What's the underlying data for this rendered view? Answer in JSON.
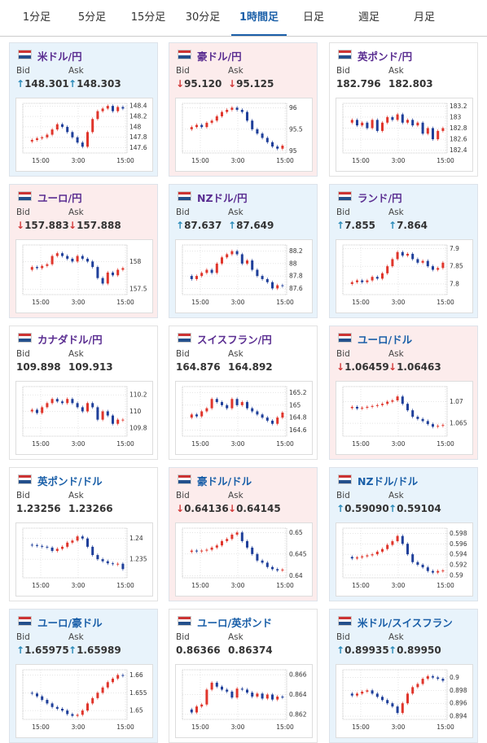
{
  "tabs": [
    "1分足",
    "5分足",
    "15分足",
    "30分足",
    "1時間足",
    "日足",
    "週足",
    "月足"
  ],
  "active_tab": 4,
  "labels": {
    "bid": "Bid",
    "ask": "Ask"
  },
  "cards": [
    {
      "title": "米ドル/円",
      "trend": "up",
      "title_color": "#5a2d91",
      "bid_arrow": "↑",
      "bid": "148.301",
      "ask_arrow": "↑",
      "ask": "148.303",
      "chart": {
        "ylim": [
          147.5,
          148.45
        ],
        "yticks": [
          147.6,
          147.8,
          148,
          148.2,
          148.4
        ],
        "xticks": [
          "15:00",
          "3:00",
          "15:00"
        ],
        "closes": [
          147.72,
          147.75,
          147.78,
          147.8,
          147.85,
          147.95,
          148.05,
          148.0,
          147.9,
          147.8,
          147.7,
          147.62,
          147.9,
          148.15,
          148.3,
          148.35,
          148.4,
          148.3,
          148.38,
          148.35
        ]
      }
    },
    {
      "title": "豪ドル/円",
      "trend": "down",
      "title_color": "#5a2d91",
      "bid_arrow": "↓",
      "bid": "95.120",
      "ask_arrow": "↓",
      "ask": "95.125",
      "chart": {
        "ylim": [
          94.95,
          96.1
        ],
        "yticks": [
          95,
          95.5,
          96
        ],
        "xticks": [
          "15:00",
          "3:00",
          "15:00"
        ],
        "closes": [
          95.5,
          95.55,
          95.6,
          95.55,
          95.65,
          95.7,
          95.8,
          95.9,
          95.95,
          96.0,
          95.95,
          95.9,
          95.7,
          95.5,
          95.4,
          95.3,
          95.2,
          95.1,
          95.05,
          95.12
        ]
      }
    },
    {
      "title": "英ポンド/円",
      "trend": "flat",
      "title_color": "#5a2d91",
      "bid": "182.796",
      "ask": "182.803",
      "chart": {
        "ylim": [
          182.35,
          183.25
        ],
        "yticks": [
          182.4,
          182.6,
          182.8,
          183,
          183.2
        ],
        "xticks": [
          "15:00",
          "3:00",
          "15:00"
        ],
        "closes": [
          182.9,
          182.95,
          182.85,
          182.9,
          182.8,
          182.95,
          182.75,
          182.9,
          183.0,
          182.95,
          183.05,
          182.9,
          182.95,
          182.85,
          182.9,
          182.7,
          182.8,
          182.6,
          182.75,
          182.8
        ]
      }
    },
    {
      "title": "ユーロ/円",
      "trend": "down",
      "title_color": "#5a2d91",
      "bid_arrow": "↓",
      "bid": "157.883",
      "ask_arrow": "↓",
      "ask": "157.888",
      "chart": {
        "ylim": [
          157.4,
          158.3
        ],
        "yticks": [
          157.5,
          158
        ],
        "xticks": [
          "15:00",
          "3:00",
          "15:00"
        ],
        "closes": [
          157.85,
          157.9,
          157.88,
          157.92,
          157.95,
          158.1,
          158.15,
          158.1,
          158.05,
          158.0,
          158.1,
          158.05,
          158.0,
          157.9,
          157.7,
          157.6,
          157.8,
          157.75,
          157.85,
          157.88
        ]
      }
    },
    {
      "title": "NZドル/円",
      "trend": "up",
      "title_color": "#5a2d91",
      "bid_arrow": "↑",
      "bid": "87.637",
      "ask_arrow": "↑",
      "ask": "87.649",
      "chart": {
        "ylim": [
          87.5,
          88.3
        ],
        "yticks": [
          87.6,
          87.8,
          88,
          88.2
        ],
        "xticks": [
          "15:00",
          "3:00",
          "15:00"
        ],
        "closes": [
          87.8,
          87.75,
          87.8,
          87.85,
          87.9,
          87.85,
          88.0,
          88.1,
          88.15,
          88.2,
          88.15,
          88.0,
          88.05,
          87.9,
          87.8,
          87.75,
          87.7,
          87.6,
          87.65,
          87.64
        ]
      }
    },
    {
      "title": "ランド/円",
      "trend": "up",
      "title_color": "#5a2d91",
      "bid_arrow": "↑",
      "bid": "7.855",
      "ask_arrow": "↑",
      "ask": "7.864",
      "chart": {
        "ylim": [
          7.77,
          7.91
        ],
        "yticks": [
          7.8,
          7.85,
          7.9
        ],
        "xticks": [
          "15:00",
          "3:00",
          "15:00"
        ],
        "closes": [
          7.8,
          7.805,
          7.81,
          7.805,
          7.81,
          7.82,
          7.815,
          7.83,
          7.85,
          7.87,
          7.89,
          7.88,
          7.885,
          7.87,
          7.86,
          7.865,
          7.85,
          7.84,
          7.845,
          7.86
        ]
      }
    },
    {
      "title": "カナダドル/円",
      "trend": "flat",
      "title_color": "#5a2d91",
      "bid": "109.898",
      "ask": "109.913",
      "chart": {
        "ylim": [
          109.7,
          110.3
        ],
        "yticks": [
          109.8,
          110,
          110.2
        ],
        "xticks": [
          "15:00",
          "3:00",
          "15:00"
        ],
        "closes": [
          110.0,
          110.02,
          109.98,
          110.05,
          110.1,
          110.15,
          110.12,
          110.1,
          110.15,
          110.1,
          110.05,
          110.0,
          110.1,
          110.05,
          109.9,
          110.0,
          109.95,
          109.85,
          109.9,
          109.9
        ]
      }
    },
    {
      "title": "スイスフラン/円",
      "trend": "flat",
      "title_color": "#5a2d91",
      "bid": "164.876",
      "ask": "164.892",
      "chart": {
        "ylim": [
          164.5,
          165.3
        ],
        "yticks": [
          164.6,
          164.8,
          165,
          165.2
        ],
        "xticks": [
          "15:00",
          "3:00",
          "15:00"
        ],
        "closes": [
          164.8,
          164.85,
          164.82,
          164.9,
          164.95,
          165.1,
          165.05,
          165.0,
          164.95,
          165.1,
          165.0,
          165.05,
          164.95,
          164.9,
          164.85,
          164.8,
          164.75,
          164.7,
          164.8,
          164.88
        ]
      }
    },
    {
      "title": "ユーロ/ドル",
      "trend": "down",
      "title_color": "#1a5fa8",
      "bid_arrow": "↓",
      "bid": "1.06459",
      "ask_arrow": "↓",
      "ask": "1.06463",
      "chart": {
        "ylim": [
          1.062,
          1.0735
        ],
        "yticks": [
          1.065,
          1.07
        ],
        "xticks": [
          "15:00",
          "3:00",
          "15:00"
        ],
        "closes": [
          1.0685,
          1.0688,
          1.0684,
          1.0686,
          1.0688,
          1.069,
          1.0692,
          1.0695,
          1.07,
          1.0703,
          1.0712,
          1.0695,
          1.068,
          1.0665,
          1.066,
          1.0655,
          1.0648,
          1.0642,
          1.0644,
          1.0646
        ]
      }
    },
    {
      "title": "英ポンド/ドル",
      "trend": "flat",
      "title_color": "#1a5fa8",
      "bid": "1.23256",
      "ask": "1.23266",
      "chart": {
        "ylim": [
          1.2305,
          1.2425
        ],
        "yticks": [
          1.235,
          1.24
        ],
        "xticks": [
          "15:00",
          "3:00",
          "15:00"
        ],
        "closes": [
          1.2385,
          1.2384,
          1.2382,
          1.238,
          1.2378,
          1.237,
          1.2375,
          1.238,
          1.239,
          1.2395,
          1.2405,
          1.24,
          1.238,
          1.236,
          1.235,
          1.2345,
          1.234,
          1.2338,
          1.2339,
          1.2326
        ]
      }
    },
    {
      "title": "豪ドル/ドル",
      "trend": "down",
      "title_color": "#1a5fa8",
      "bid_arrow": "↓",
      "bid": "0.64136",
      "ask_arrow": "↓",
      "ask": "0.64145",
      "chart": {
        "ylim": [
          0.6395,
          0.651
        ],
        "yticks": [
          0.64,
          0.645,
          0.65
        ],
        "xticks": [
          "15:00",
          "3:00",
          "15:00"
        ],
        "closes": [
          0.6455,
          0.6458,
          0.6456,
          0.6458,
          0.646,
          0.6465,
          0.647,
          0.648,
          0.6485,
          0.6495,
          0.65,
          0.648,
          0.6465,
          0.645,
          0.6435,
          0.643,
          0.642,
          0.6415,
          0.6412,
          0.6414
        ]
      }
    },
    {
      "title": "NZドル/ドル",
      "trend": "up",
      "title_color": "#1a5fa8",
      "bid_arrow": "↑",
      "bid": "0.59090",
      "ask_arrow": "↑",
      "ask": "0.59104",
      "chart": {
        "ylim": [
          0.5895,
          0.599
        ],
        "yticks": [
          0.59,
          0.592,
          0.594,
          0.596,
          0.598
        ],
        "xticks": [
          "15:00",
          "3:00",
          "15:00"
        ],
        "closes": [
          0.5935,
          0.5932,
          0.5934,
          0.5936,
          0.5938,
          0.594,
          0.5945,
          0.595,
          0.5958,
          0.5965,
          0.5975,
          0.596,
          0.594,
          0.5925,
          0.592,
          0.5915,
          0.5908,
          0.5905,
          0.5908,
          0.5909
        ]
      }
    },
    {
      "title": "ユーロ/豪ドル",
      "trend": "up",
      "title_color": "#1a5fa8",
      "bid_arrow": "↑",
      "bid": "1.65975",
      "ask_arrow": "↑",
      "ask": "1.65989",
      "chart": {
        "ylim": [
          1.6475,
          1.6615
        ],
        "yticks": [
          1.65,
          1.655,
          1.66
        ],
        "xticks": [
          "15:00",
          "3:00",
          "15:00"
        ],
        "closes": [
          1.655,
          1.6548,
          1.654,
          1.653,
          1.652,
          1.651,
          1.6505,
          1.65,
          1.649,
          1.6485,
          1.6488,
          1.65,
          1.652,
          1.6535,
          1.655,
          1.6565,
          1.658,
          1.659,
          1.66,
          1.6598
        ]
      }
    },
    {
      "title": "ユーロ/英ポンド",
      "trend": "flat",
      "title_color": "#1a5fa8",
      "bid": "0.86366",
      "ask": "0.86374",
      "chart": {
        "ylim": [
          0.8615,
          0.8665
        ],
        "yticks": [
          0.862,
          0.864,
          0.866
        ],
        "xticks": [
          "15:00",
          "3:00",
          "15:00"
        ],
        "closes": [
          0.8625,
          0.8622,
          0.8628,
          0.863,
          0.8645,
          0.8652,
          0.8648,
          0.8645,
          0.8643,
          0.8637,
          0.8646,
          0.8645,
          0.8642,
          0.8638,
          0.8641,
          0.8636,
          0.864,
          0.8635,
          0.8638,
          0.8637
        ]
      }
    },
    {
      "title": "米ドル/スイスフラン",
      "trend": "up",
      "title_color": "#1a5fa8",
      "bid_arrow": "↑",
      "bid": "0.89935",
      "ask_arrow": "↑",
      "ask": "0.89950",
      "chart": {
        "ylim": [
          0.8935,
          0.9012
        ],
        "yticks": [
          0.894,
          0.896,
          0.898,
          0.9
        ],
        "xticks": [
          "15:00",
          "3:00",
          "15:00"
        ],
        "closes": [
          0.8975,
          0.8972,
          0.8975,
          0.8978,
          0.898,
          0.8975,
          0.897,
          0.8965,
          0.896,
          0.8955,
          0.8945,
          0.896,
          0.8975,
          0.8985,
          0.899,
          0.8998,
          0.9002,
          0.9,
          0.8998,
          0.8995
        ]
      }
    }
  ]
}
